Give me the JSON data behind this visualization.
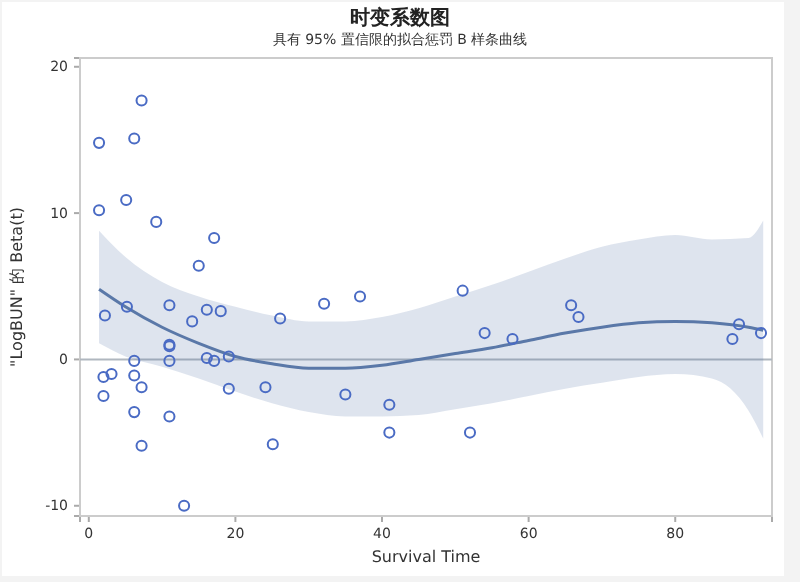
{
  "chart_data": {
    "type": "scatter",
    "title": "时变系数图",
    "subtitle": "具有 95% 置信限的拟合惩罚 B 样条曲线",
    "xlabel": "Survival Time",
    "ylabel": "\"LogBUN\" 的 Beta(t)",
    "xlim": [
      -1.2,
      93.2
    ],
    "ylim": [
      -10.7,
      20.6
    ],
    "xticks": [
      0,
      20,
      40,
      60,
      80
    ],
    "yticks": [
      -10,
      0,
      10,
      20
    ],
    "grid": false,
    "marker": "circle",
    "ref_lines": [
      {
        "axis": "y",
        "value": 0,
        "color": "#b0b7bf"
      }
    ],
    "series": [
      {
        "type": "line",
        "color": "#5a78a8",
        "line_style": "solid",
        "marker": "none",
        "x": [
          1.4,
          5,
          10,
          15,
          20,
          25,
          30,
          35,
          40,
          45,
          50,
          55,
          60,
          65,
          70,
          75,
          80,
          85,
          90,
          92
        ],
        "values": [
          4.8,
          3.6,
          2.2,
          1.1,
          0.2,
          -0.3,
          -0.6,
          -0.6,
          -0.4,
          0,
          0.4,
          0.8,
          1.3,
          1.8,
          2.2,
          2.5,
          2.6,
          2.5,
          2.2,
          2.0
        ],
        "lower": [
          1.1,
          0.2,
          -0.5,
          -1.3,
          -2.2,
          -3.0,
          -3.6,
          -3.9,
          -3.9,
          -3.8,
          -3.4,
          -3.0,
          -2.5,
          -2.0,
          -1.6,
          -1.2,
          -1.0,
          -1.3,
          -3.5,
          -5.4
        ],
        "upper": [
          8.8,
          7,
          5.3,
          4.3,
          3.6,
          3.0,
          2.6,
          2.6,
          2.9,
          3.5,
          4.3,
          5.1,
          6.0,
          6.9,
          7.7,
          8.2,
          8.5,
          8.2,
          8.3,
          9.5
        ]
      },
      {
        "color": "#4a6bc4",
        "x": [
          2.2,
          2,
          3.1,
          2,
          5.2,
          6.2,
          6.2,
          7.2,
          6.2,
          7.2,
          11,
          11,
          11,
          11,
          11,
          13,
          14.1,
          16.1,
          18,
          16.1,
          17.1,
          19.1,
          19.1,
          24.1,
          25.1,
          26.1,
          32.1,
          35,
          37,
          41,
          41,
          51,
          52,
          54,
          57.8,
          65.8,
          66.8,
          87.8,
          88.7,
          91.7,
          1.4,
          1.4,
          5.1,
          6.2,
          7.2,
          9.2,
          15,
          17.1
        ],
        "values": [
          3.0,
          -1.2,
          -1.0,
          -2.5,
          3.6,
          -0.1,
          -1.1,
          -1.9,
          -3.6,
          -5.9,
          3.7,
          1.0,
          0.9,
          -0.1,
          -3.9,
          -10,
          2.6,
          3.4,
          3.3,
          0.1,
          -0.1,
          0.2,
          -2.0,
          -1.9,
          -5.8,
          2.8,
          3.8,
          -2.4,
          4.3,
          -3.1,
          -5,
          4.7,
          -5,
          1.8,
          1.4,
          3.7,
          2.9,
          1.4,
          2.4,
          1.8,
          14.8,
          10.2,
          10.9,
          15.1,
          17.7,
          9.4,
          6.4,
          8.3
        ]
      }
    ]
  }
}
